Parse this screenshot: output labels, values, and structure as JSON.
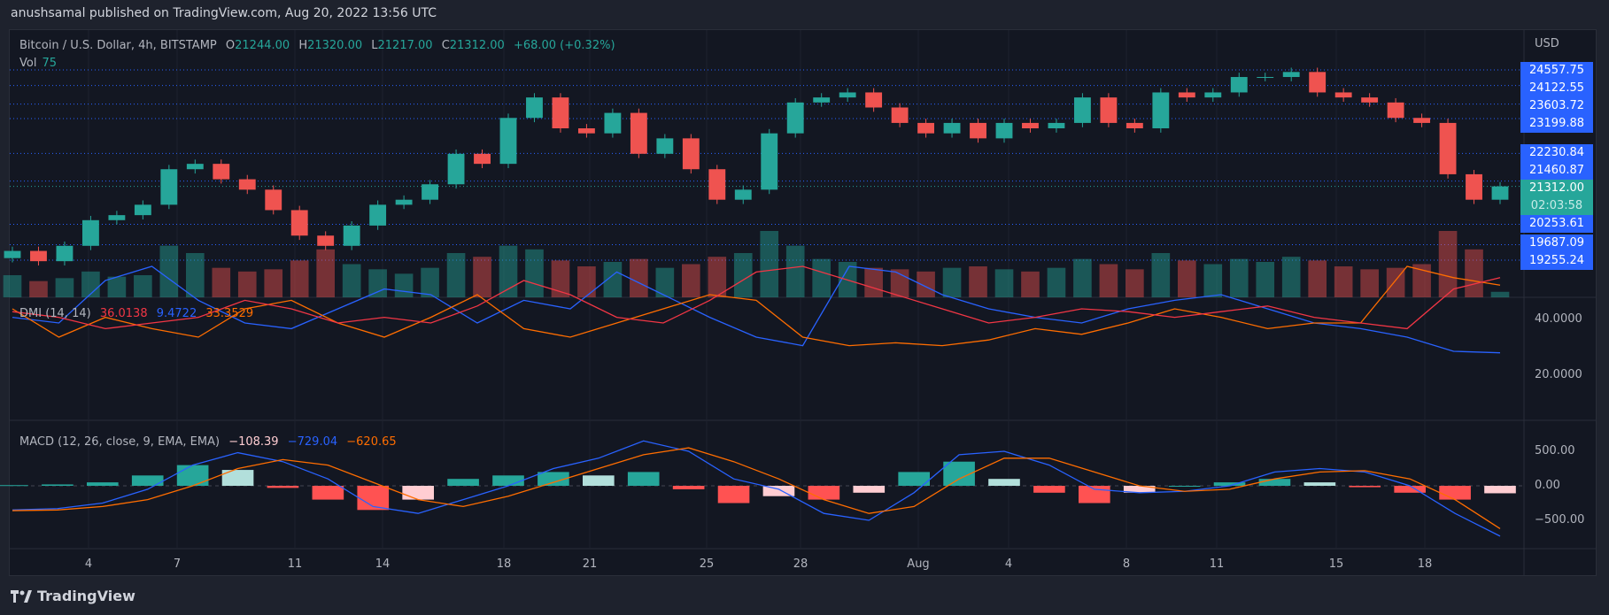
{
  "header": {
    "published": "anushsamal published on TradingView.com, Aug 20, 2022 13:56 UTC"
  },
  "symbol_legend": {
    "title": "Bitcoin / U.S. Dollar, 4h, BITSTAMP",
    "o_label": "O",
    "o": "21244.00",
    "h_label": "H",
    "h": "21320.00",
    "l_label": "L",
    "l": "21217.00",
    "c_label": "C",
    "c": "21312.00",
    "change": "+68.00 (+0.32%)",
    "vol_label": "Vol",
    "vol": "75"
  },
  "dmi_legend": {
    "title": "DMI (14, 14)",
    "adx": "36.0138",
    "plus_di": "9.4722",
    "minus_di": "33.3529"
  },
  "macd_legend": {
    "title": "MACD (12, 26, close, 9, EMA, EMA)",
    "hist": "−108.39",
    "macd": "−729.04",
    "signal": "−620.65"
  },
  "price_axis": {
    "currency": "USD",
    "levels": [
      "24557.75",
      "24122.55",
      "23603.72",
      "23199.88",
      "22230.84",
      "21460.87",
      "20253.61",
      "19687.09",
      "19255.24"
    ],
    "current_price": "21312.00",
    "countdown": "02:03:58"
  },
  "dmi_axis": [
    "40.0000",
    "20.0000"
  ],
  "macd_axis": [
    "500.00",
    "0.00",
    "−500.00"
  ],
  "time_axis": [
    "4",
    "7",
    "11",
    "14",
    "18",
    "21",
    "25",
    "28",
    "Aug",
    "4",
    "8",
    "11",
    "15",
    "18"
  ],
  "footer": {
    "brand": "TradingView"
  },
  "colors": {
    "up": "#26a69a",
    "down": "#ef5350",
    "level_line": "#2962ff",
    "plus_di": "#2962ff",
    "minus_di": "#ff6d00",
    "adx": "#f23645",
    "macd": "#2962ff",
    "signal": "#ff6d00"
  },
  "chart_data": [
    {
      "type": "candlestick",
      "title": "Bitcoin / U.S. Dollar, 4h, BITSTAMP",
      "ylabel": "USD",
      "ylim": [
        18900,
        25500
      ],
      "closes": [
        19513,
        19227,
        19655,
        20370,
        20510,
        20800,
        21790,
        21940,
        21510,
        21220,
        20650,
        19940,
        19655,
        20220,
        20800,
        20940,
        21370,
        22220,
        21940,
        23220,
        23790,
        22930,
        22790,
        23360,
        22220,
        22650,
        21790,
        20940,
        21220,
        22790,
        23650,
        23790,
        23930,
        23510,
        23080,
        22790,
        23080,
        22650,
        23080,
        22930,
        23080,
        23790,
        23080,
        22930,
        23930,
        23790,
        23930,
        24360,
        24360,
        24500,
        23930,
        23790,
        23650,
        23220,
        23080,
        21650,
        20940,
        21312
      ],
      "volumes": [
        300,
        220,
        260,
        350,
        280,
        300,
        700,
        600,
        400,
        350,
        380,
        500,
        650,
        450,
        380,
        320,
        400,
        600,
        550,
        700,
        650,
        500,
        420,
        480,
        520,
        400,
        450,
        550,
        600,
        900,
        700,
        520,
        480,
        400,
        380,
        350,
        400,
        420,
        380,
        350,
        400,
        520,
        450,
        380,
        600,
        500,
        450,
        520,
        480,
        550,
        500,
        420,
        380,
        400,
        450,
        900,
        650,
        75
      ],
      "level_lines": [
        24557.75,
        24122.55,
        23603.72,
        23199.88,
        22230.84,
        21460.87,
        20253.61,
        19687.09,
        19255.24
      ]
    },
    {
      "type": "line",
      "title": "DMI (14, 14)",
      "ylim": [
        5,
        45
      ],
      "series": [
        {
          "name": "+DI",
          "values": [
            22,
            20,
            35,
            40,
            28,
            20,
            18,
            25,
            32,
            30,
            20,
            28,
            25,
            38,
            30,
            22,
            15,
            12,
            40,
            38,
            30,
            25,
            22,
            20,
            25,
            28,
            30,
            25,
            20,
            18,
            15,
            10,
            9.4722
          ]
        },
        {
          "name": "-DI",
          "values": [
            25,
            15,
            22,
            18,
            15,
            25,
            28,
            20,
            15,
            22,
            30,
            18,
            15,
            20,
            25,
            30,
            28,
            15,
            12,
            13,
            12,
            14,
            18,
            16,
            20,
            25,
            22,
            18,
            20,
            20,
            40,
            36,
            33.3529
          ]
        },
        {
          "name": "ADX",
          "values": [
            24,
            22,
            18,
            20,
            22,
            28,
            25,
            20,
            22,
            20,
            26,
            35,
            30,
            22,
            20,
            28,
            38,
            40,
            35,
            30,
            25,
            20,
            22,
            25,
            24,
            22,
            24,
            26,
            22,
            20,
            18,
            32,
            36.0138
          ]
        }
      ]
    },
    {
      "type": "line",
      "title": "MACD (12, 26, close, 9, EMA, EMA)",
      "ylim": [
        -900,
        900
      ],
      "series": [
        {
          "name": "MACD",
          "values": [
            -350,
            -330,
            -250,
            -50,
            300,
            480,
            350,
            100,
            -300,
            -400,
            -200,
            0,
            250,
            400,
            650,
            500,
            100,
            -50,
            -400,
            -500,
            -100,
            450,
            500,
            300,
            -50,
            -100,
            -80,
            0,
            200,
            250,
            200,
            0,
            -400,
            -729.04
          ]
        },
        {
          "name": "Signal",
          "values": [
            -360,
            -350,
            -300,
            -200,
            0,
            250,
            380,
            300,
            50,
            -200,
            -300,
            -150,
            50,
            250,
            450,
            550,
            350,
            100,
            -200,
            -400,
            -300,
            100,
            400,
            400,
            200,
            0,
            -80,
            -50,
            100,
            200,
            220,
            100,
            -200,
            -620.65
          ]
        }
      ]
    }
  ]
}
